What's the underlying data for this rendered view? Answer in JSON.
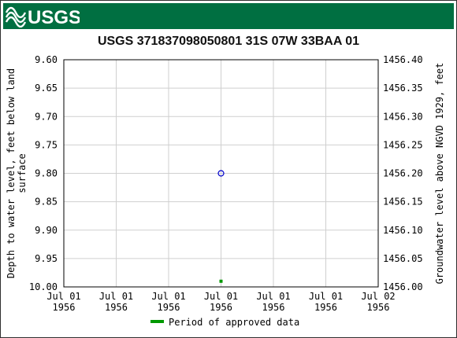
{
  "header": {
    "logo_text": "USGS",
    "banner_color": "#006f41"
  },
  "chart_data": {
    "type": "scatter",
    "title": "USGS 371837098050801 31S 07W 33BAA 01",
    "ylabel_left": [
      "Depth to water level, feet below land",
      "surface"
    ],
    "ylabel_right": "Groundwater level above NGVD 1929, feet",
    "y_left_ticks": [
      "9.60",
      "9.65",
      "9.70",
      "9.75",
      "9.80",
      "9.85",
      "9.90",
      "9.95",
      "10.00"
    ],
    "y_right_ticks": [
      "1456.40",
      "1456.35",
      "1456.30",
      "1456.25",
      "1456.20",
      "1456.15",
      "1456.10",
      "1456.05",
      "1456.00"
    ],
    "ylim_left": [
      9.6,
      10.0
    ],
    "ylim_right": [
      1456.4,
      1456.0
    ],
    "x_ticks": [
      [
        "Jul 01",
        "1956"
      ],
      [
        "Jul 01",
        "1956"
      ],
      [
        "Jul 01",
        "1956"
      ],
      [
        "Jul 01",
        "1956"
      ],
      [
        "Jul 01",
        "1956"
      ],
      [
        "Jul 01",
        "1956"
      ],
      [
        "Jul 02",
        "1956"
      ]
    ],
    "xlim_hours": [
      0,
      24
    ],
    "grid": true,
    "series": [
      {
        "kind": "measurement",
        "marker": "open-circle",
        "color": "#0000cc",
        "points": [
          {
            "x_hours": 12,
            "y": 9.8
          }
        ]
      },
      {
        "kind": "approval",
        "marker": "square",
        "color": "#009900",
        "points": [
          {
            "x_hours": 12,
            "y": 9.99
          }
        ]
      }
    ],
    "legend": {
      "position": "bottom-center",
      "label": "Period of approved data",
      "color": "#009900"
    }
  }
}
